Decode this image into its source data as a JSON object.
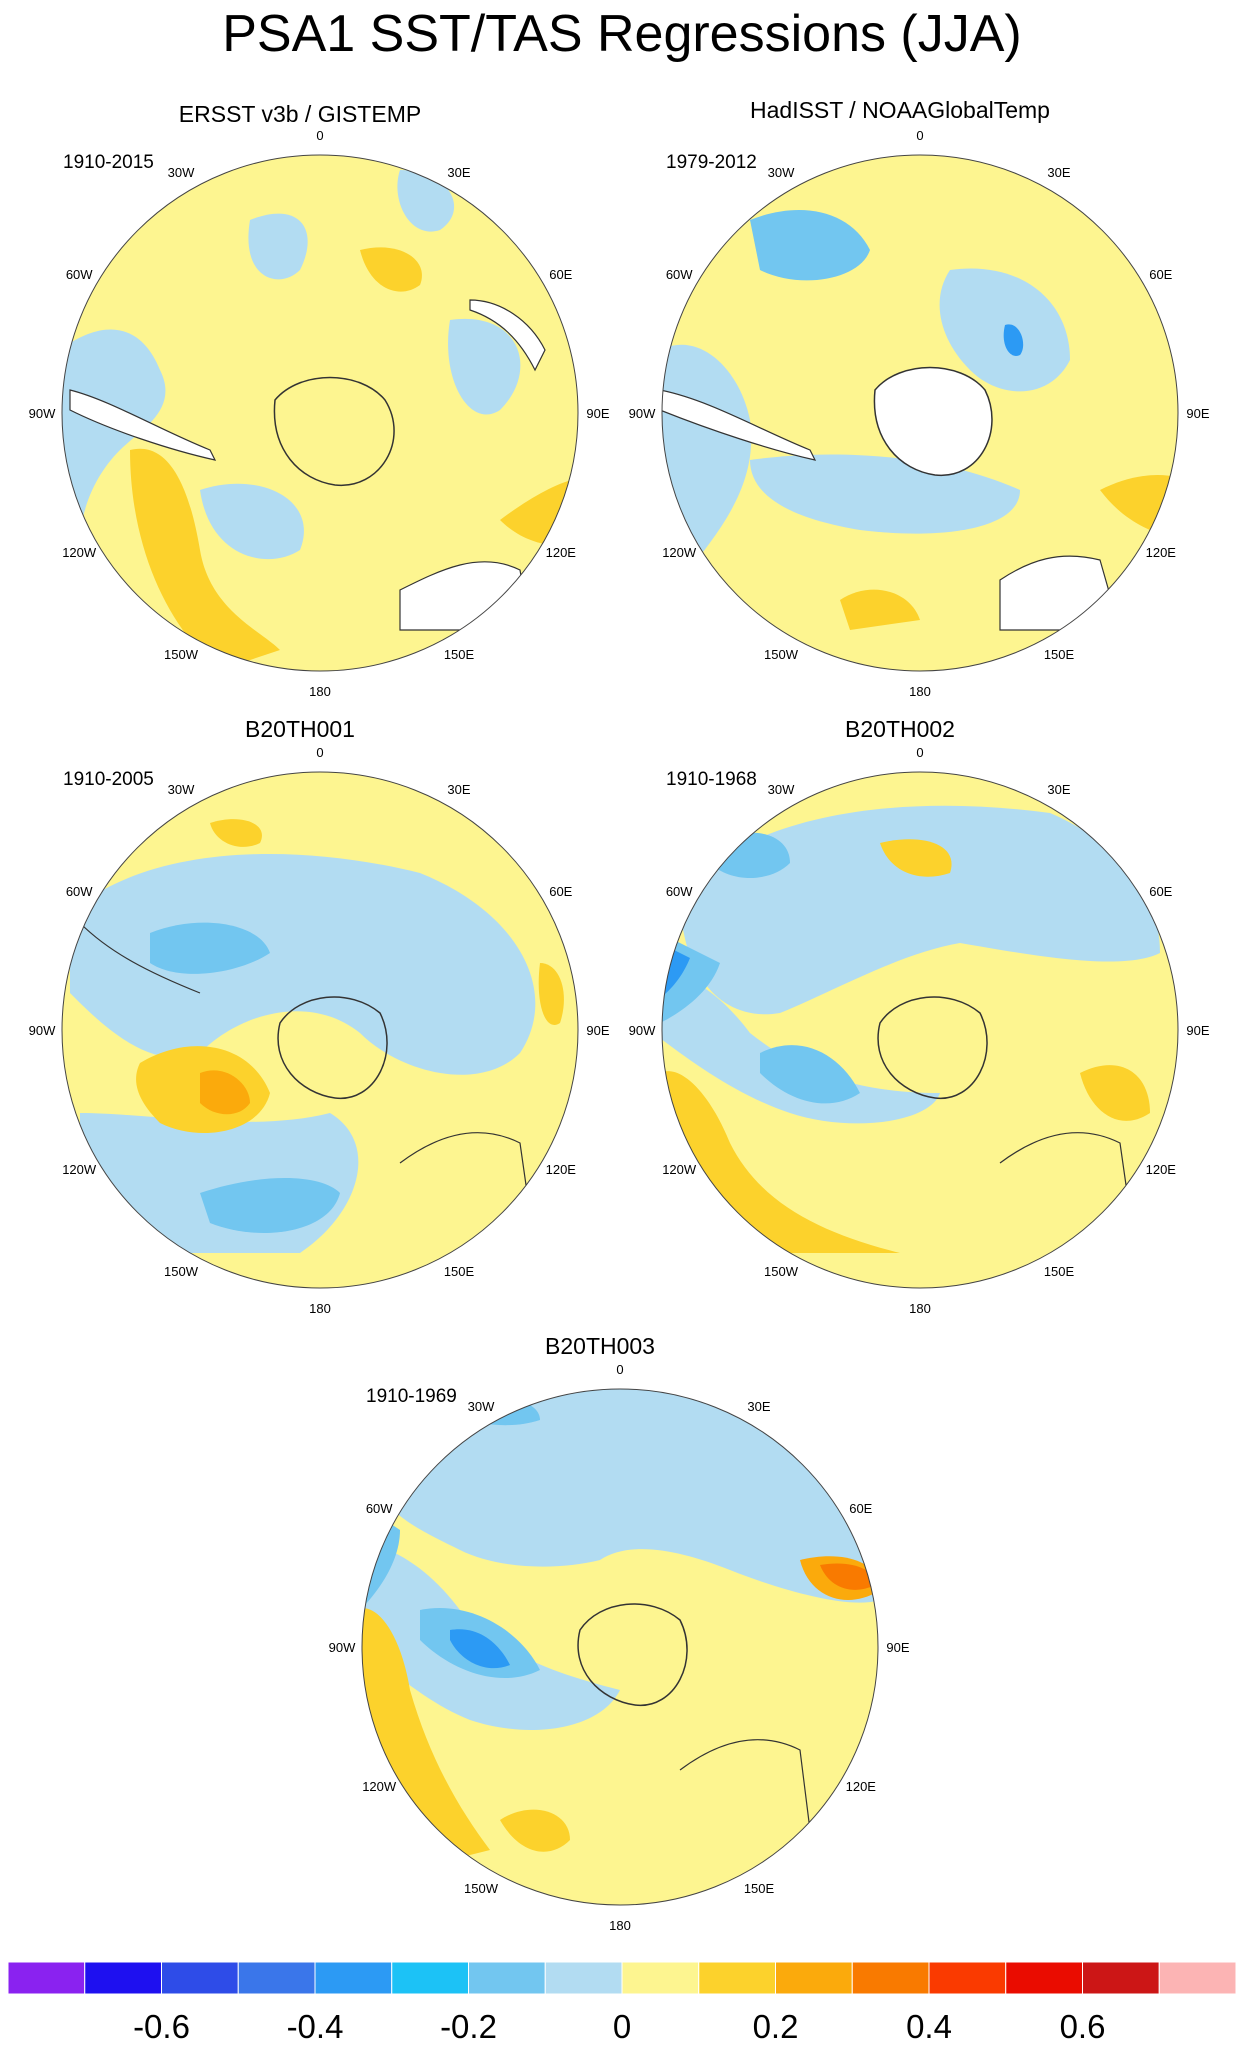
{
  "title": "PSA1 SST/TAS Regressions (JJA)",
  "palette": {
    "neg06": "#1e10f0",
    "neg05": "#2e4ce8",
    "neg04": "#3a76ea",
    "neg03": "#2c9af4",
    "neg02": "#72c6f0",
    "neg01": "#b2dcf2",
    "pos0": "#fdf590",
    "pos01": "#fcd22c",
    "pos02": "#fbaa0c",
    "pos03": "#f97a00",
    "pos04": "#fa3a00",
    "pos05": "#ea0c00",
    "pos06": "#cc1616",
    "landmask": "#ffffff"
  },
  "longitude_labels": [
    "0",
    "30E",
    "60E",
    "90E",
    "120E",
    "150E",
    "180",
    "150W",
    "120W",
    "90W",
    "60W",
    "30W"
  ],
  "panels": [
    {
      "id": "ersst",
      "title": "ERSST v3b / GISTEMP",
      "period": "1910-2015"
    },
    {
      "id": "hadisst",
      "title": "HadISST / NOAAGlobalTemp",
      "period": "1979-2012"
    },
    {
      "id": "b20th001",
      "title": "B20TH001",
      "period": "1910-2005"
    },
    {
      "id": "b20th002",
      "title": "B20TH002",
      "period": "1910-1968"
    },
    {
      "id": "b20th003",
      "title": "B20TH003",
      "period": "1910-1969"
    }
  ],
  "colorbar": {
    "colors": [
      "#8a22f0",
      "#1e10f0",
      "#2e4ce8",
      "#3a76ea",
      "#2c9af4",
      "#1cc2f6",
      "#72c6f0",
      "#b2dcf2",
      "#fdf590",
      "#fcd22c",
      "#fbaa0c",
      "#f97a00",
      "#fa3a00",
      "#ea0c00",
      "#cc1616",
      "#fcb4b4"
    ],
    "tick_labels": [
      "-0.6",
      "-0.4",
      "-0.2",
      "0",
      "0.2",
      "0.4",
      "0.6"
    ]
  }
}
